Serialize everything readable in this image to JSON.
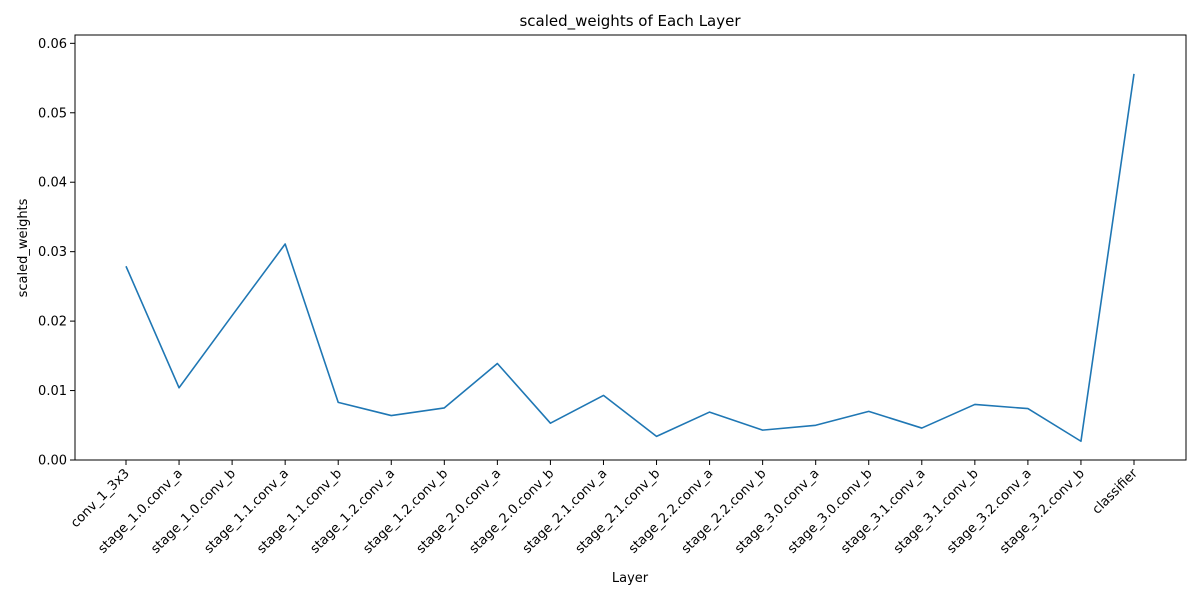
{
  "chart_data": {
    "type": "line",
    "title": "scaled_weights of Each Layer",
    "xlabel": "Layer",
    "ylabel": "scaled_weights",
    "categories": [
      "conv_1_3x3",
      "stage_1.0.conv_a",
      "stage_1.0.conv_b",
      "stage_1.1.conv_a",
      "stage_1.1.conv_b",
      "stage_1.2.conv_a",
      "stage_1.2.conv_b",
      "stage_2.0.conv_a",
      "stage_2.0.conv_b",
      "stage_2.1.conv_a",
      "stage_2.1.conv_b",
      "stage_2.2.conv_a",
      "stage_2.2.conv_b",
      "stage_3.0.conv_a",
      "stage_3.0.conv_b",
      "stage_3.1.conv_a",
      "stage_3.1.conv_b",
      "stage_3.2.conv_a",
      "stage_3.2.conv_b",
      "classifier"
    ],
    "series": [
      {
        "values": [
          0.0279,
          0.0104,
          0.0208,
          0.0311,
          0.0083,
          0.0064,
          0.0075,
          0.0139,
          0.0053,
          0.0093,
          0.0034,
          0.0069,
          0.0043,
          0.005,
          0.007,
          0.0046,
          0.008,
          0.0074,
          0.0027,
          0.0556
        ]
      }
    ],
    "ylim": [
      0,
      0.0612
    ],
    "yticks": [
      "0.00",
      "0.01",
      "0.02",
      "0.03",
      "0.04",
      "0.05",
      "0.06"
    ],
    "ytick_values": [
      0,
      0.01,
      0.02,
      0.03,
      0.04,
      0.05,
      0.06
    ],
    "grid": false,
    "colors": {
      "line": "#1f77b4",
      "axes": "#000000",
      "background": "#ffffff"
    }
  }
}
